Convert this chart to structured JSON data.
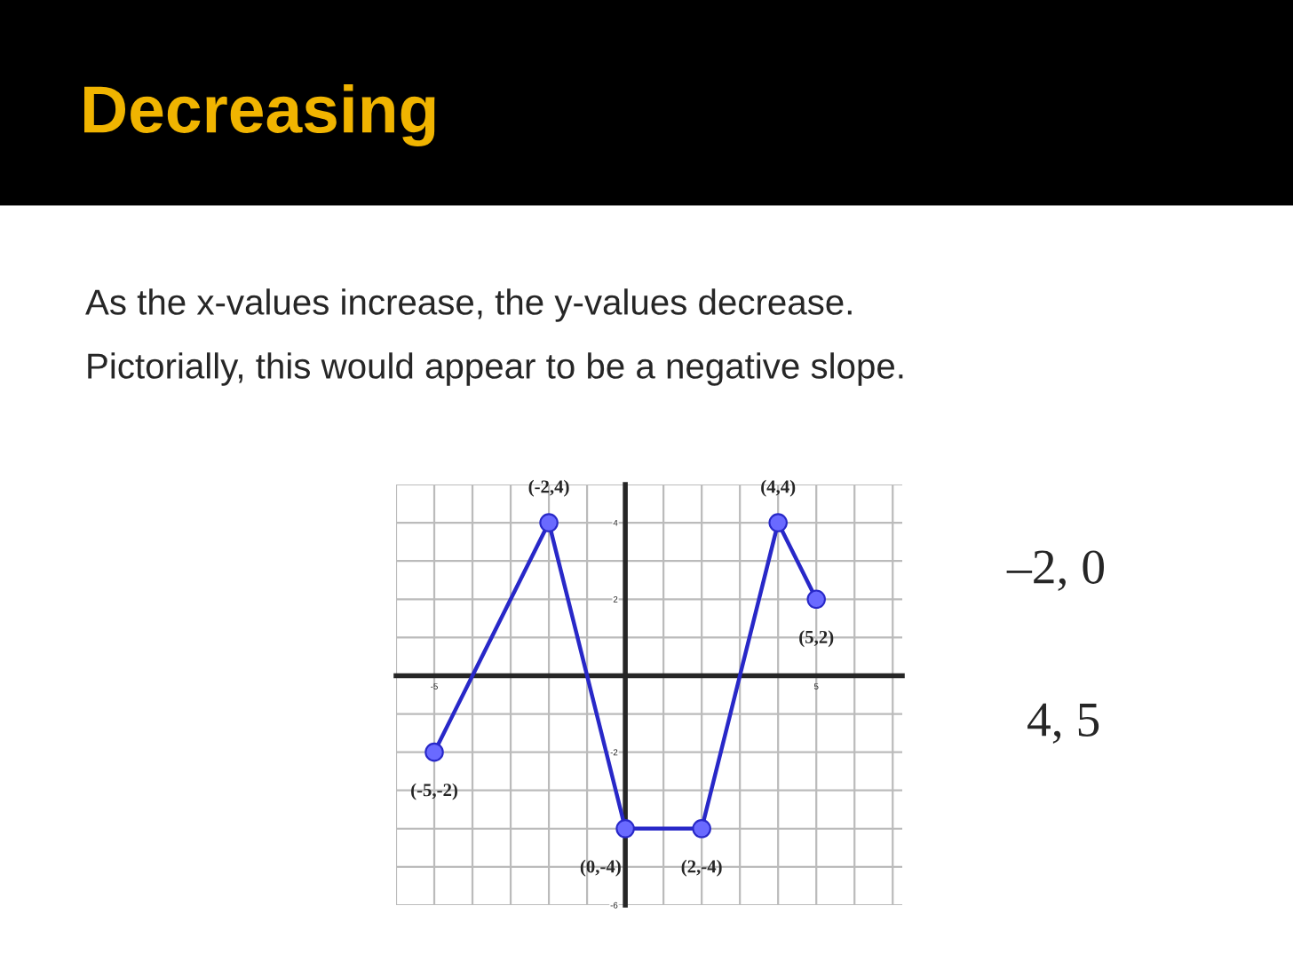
{
  "chart_data": {
    "type": "line",
    "title": "Decreasing",
    "x": [
      -5,
      -2,
      0,
      2,
      4,
      5
    ],
    "series": [
      {
        "color": "#2828c8",
        "values": [
          -2,
          4,
          -4,
          -4,
          4,
          2
        ]
      }
    ],
    "marker": "circle",
    "line_style": "solid",
    "grid": true,
    "legend": false,
    "xlim": [
      -6,
      7.25
    ],
    "ylim": [
      -6,
      5
    ],
    "xticks": [
      {
        "value": -6,
        "label": null
      },
      {
        "value": -5,
        "label": "-5"
      },
      {
        "value": -4,
        "label": null
      },
      {
        "value": -3,
        "label": null
      },
      {
        "value": -2,
        "label": null
      },
      {
        "value": -1,
        "label": null
      },
      {
        "value": 1,
        "label": null
      },
      {
        "value": 2,
        "label": null
      },
      {
        "value": 3,
        "label": null
      },
      {
        "value": 4,
        "label": null
      },
      {
        "value": 5,
        "label": "5"
      },
      {
        "value": 6,
        "label": null
      },
      {
        "value": 7,
        "label": null
      }
    ],
    "yticks": [
      {
        "value": -6,
        "label": "-6"
      },
      {
        "value": -5,
        "label": null
      },
      {
        "value": -4,
        "label": null
      },
      {
        "value": -3,
        "label": null
      },
      {
        "value": -2,
        "label": "-2"
      },
      {
        "value": -1,
        "label": null
      },
      {
        "value": 1,
        "label": null
      },
      {
        "value": 2,
        "label": "2"
      },
      {
        "value": 3,
        "label": null
      },
      {
        "value": 4,
        "label": "4"
      },
      {
        "value": 5,
        "label": null
      }
    ],
    "annotations": [
      "As the x-values increase, the y-values decrease.",
      "Pictorially, this would appear to be a negative slope.",
      "–2, 0",
      "4, 5",
      {
        "text": "(-5,-2)",
        "x": -5,
        "y": -2
      },
      {
        "text": "(-2,4)",
        "x": -2,
        "y": 4
      },
      {
        "text": "(0,-4)",
        "x": 0,
        "y": -4
      },
      {
        "text": "(2,-4)",
        "x": 2,
        "y": -4
      },
      {
        "text": "(4,4)",
        "x": 4,
        "y": 4
      },
      {
        "text": "(5,2)",
        "x": 5,
        "y": 2
      }
    ]
  }
}
